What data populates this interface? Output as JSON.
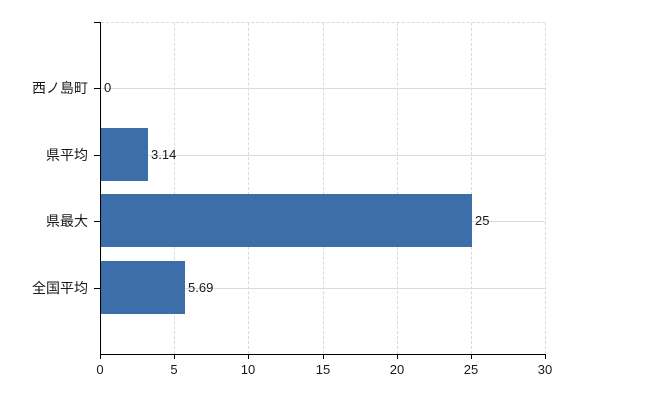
{
  "chart_data": {
    "type": "bar",
    "orientation": "horizontal",
    "title": "",
    "categories": [
      "西ノ島町",
      "県平均",
      "県最大",
      "全国平均"
    ],
    "values": [
      0,
      3.14,
      25,
      5.69
    ],
    "value_labels": [
      "0",
      "3.14",
      "25",
      "5.69"
    ],
    "xlim": [
      0,
      30
    ],
    "x_ticks": [
      0,
      5,
      10,
      15,
      20,
      25,
      30
    ],
    "legend": "none",
    "grid": "vertical-dashed and horizontal-solid",
    "colors": {
      "bar": "#3c6eaa",
      "axis": "#000000",
      "grid": "#d9d9d9",
      "text": "#1a1a1a",
      "background": "#ffffff"
    }
  }
}
